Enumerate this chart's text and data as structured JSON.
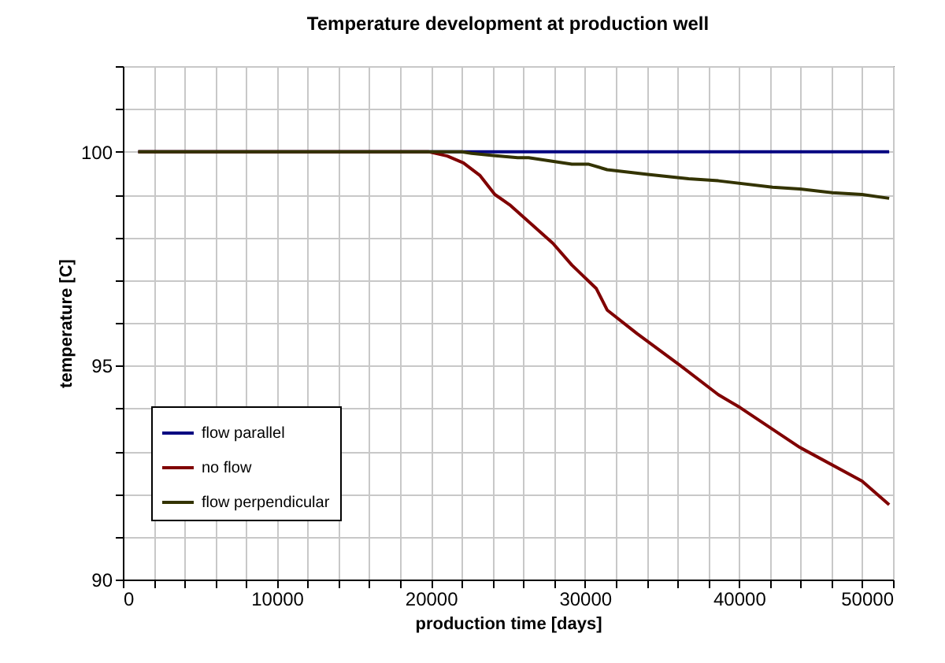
{
  "chart_data": {
    "type": "line",
    "title": "Temperature development at production well",
    "xlabel": "production time [days]",
    "ylabel": "temperature [C]",
    "xlim": [
      0,
      50000
    ],
    "ylim": [
      90,
      102
    ],
    "xticks": [
      0,
      {
        "value": 2000,
        "label": null
      },
      {
        "value": 4000,
        "label": null
      },
      {
        "value": 6000,
        "label": null
      },
      {
        "value": 8000,
        "label": null
      },
      10000,
      {
        "value": 12000,
        "label": null
      },
      {
        "value": 14000,
        "label": null
      },
      {
        "value": 16000,
        "label": null
      },
      {
        "value": 18000,
        "label": null
      },
      20000,
      {
        "value": 22000,
        "label": null
      },
      {
        "value": 24000,
        "label": null
      },
      {
        "value": 26000,
        "label": null
      },
      {
        "value": 28000,
        "label": null
      },
      30000,
      {
        "value": 32000,
        "label": null
      },
      {
        "value": 34000,
        "label": null
      },
      {
        "value": 36000,
        "label": null
      },
      {
        "value": 38000,
        "label": null
      },
      40000,
      {
        "value": 42000,
        "label": null
      },
      {
        "value": 44000,
        "label": null
      },
      {
        "value": 46000,
        "label": null
      },
      {
        "value": 48000,
        "label": null
      },
      50000
    ],
    "yticks": [
      90,
      {
        "value": 91,
        "label": null
      },
      {
        "value": 92,
        "label": null
      },
      {
        "value": 93,
        "label": null
      },
      {
        "value": 94,
        "label": null
      },
      95,
      {
        "value": 96,
        "label": null
      },
      {
        "value": 97,
        "label": null
      },
      {
        "value": 98,
        "label": null
      },
      {
        "value": 99,
        "label": null
      },
      100,
      {
        "value": 101,
        "label": null
      },
      {
        "value": 102,
        "label": null
      }
    ],
    "grid": true,
    "legend": "bottom left",
    "marker": "none",
    "line_style": "solid",
    "series": [
      {
        "name": "flow parallel",
        "color": "#000080",
        "x": [
          1000,
          22000,
          49750
        ],
        "values": [
          100,
          100,
          100
        ]
      },
      {
        "name": "no flow",
        "color": "#800000",
        "x": [
          1000,
          19820,
          21060,
          22110,
          23170,
          24150,
          25110,
          27920,
          29150,
          30740,
          31440,
          33380,
          36200,
          38660,
          40070,
          43940,
          47990,
          49750
        ],
        "values": [
          100,
          100,
          99.9,
          99.74,
          99.45,
          99.0,
          98.76,
          97.86,
          97.35,
          96.8,
          96.3,
          95.75,
          95.0,
          94.32,
          94.02,
          93.09,
          92.3,
          91.75
        ]
      },
      {
        "name": "flow perpendicular",
        "color": "#333300",
        "x": [
          1000,
          22000,
          22640,
          24050,
          25630,
          26340,
          29150,
          30210,
          31440,
          34080,
          36730,
          38660,
          42180,
          43940,
          46060,
          47990,
          49750
        ],
        "values": [
          100,
          100,
          99.96,
          99.91,
          99.86,
          99.86,
          99.71,
          99.71,
          99.58,
          99.47,
          99.37,
          99.32,
          99.17,
          99.13,
          99.04,
          99.0,
          98.91
        ]
      }
    ]
  }
}
